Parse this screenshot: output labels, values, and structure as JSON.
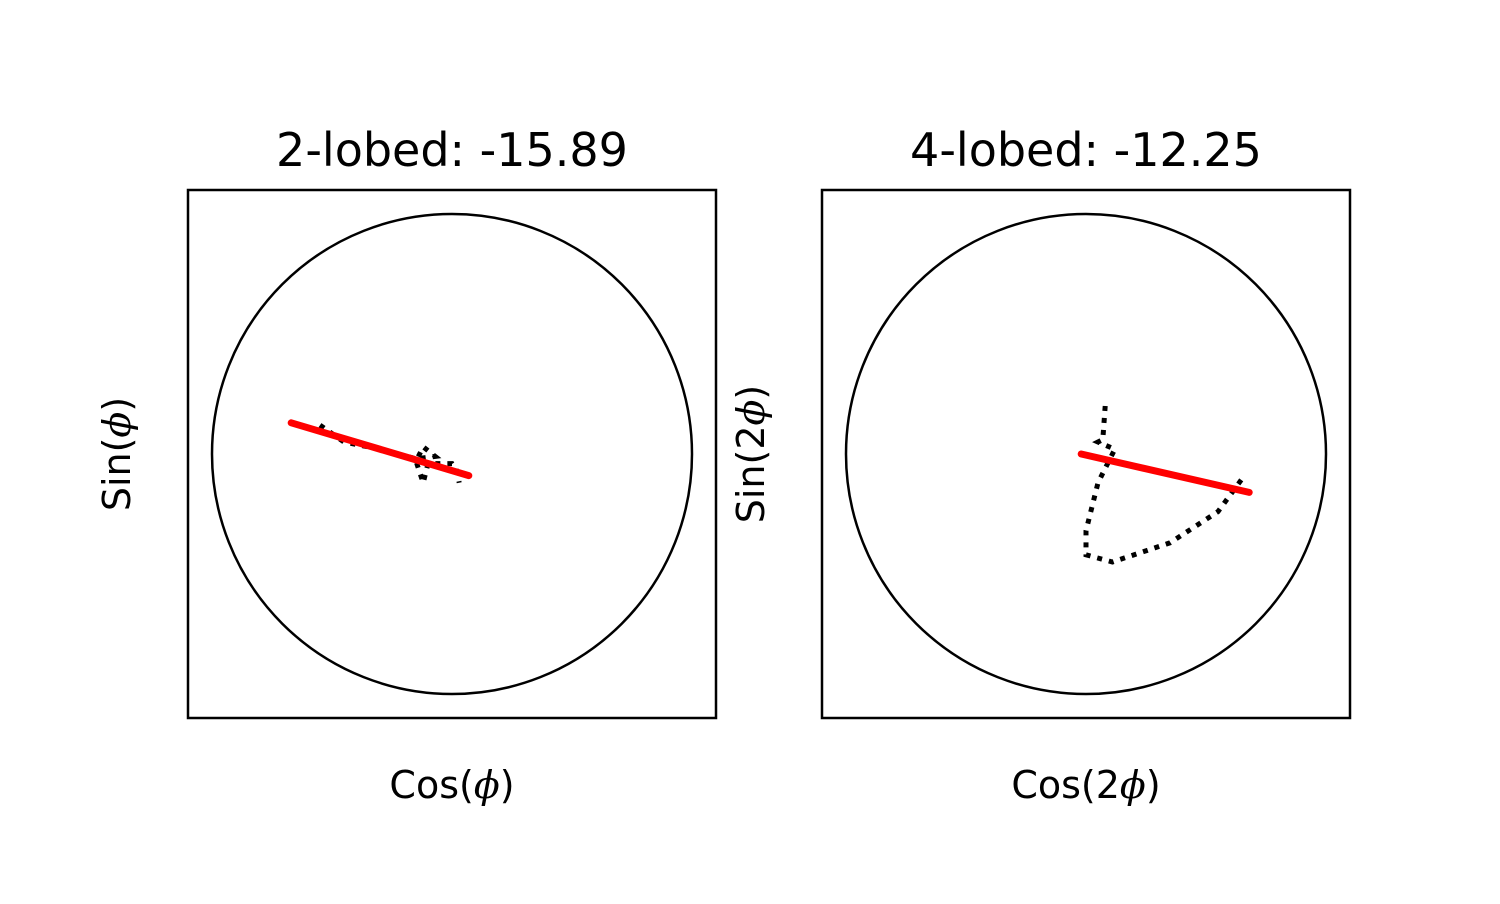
{
  "chart_data": [
    {
      "type": "line",
      "title": "2-lobed: -15.89",
      "xlabel_prefix": "Cos(",
      "xlabel_symbol": "ϕ",
      "xlabel_suffix": ")",
      "ylabel_prefix": "Sin(",
      "ylabel_symbol": "ϕ",
      "ylabel_suffix": ")",
      "xlim": [
        -1.1,
        1.1
      ],
      "ylim": [
        -1.1,
        1.1
      ],
      "ticks": "none",
      "unit_circle": {
        "radius": 1.0,
        "color": "#000000"
      },
      "series": [
        {
          "style": "dotted",
          "color": "#000000",
          "points": [
            [
              -0.55,
              0.12
            ],
            [
              -0.45,
              0.05
            ],
            [
              -0.3,
              0.02
            ],
            [
              -0.15,
              -0.02
            ],
            [
              -0.07,
              -0.01
            ],
            [
              -0.12,
              0.03
            ],
            [
              -0.15,
              -0.03
            ],
            [
              -0.12,
              -0.12
            ],
            [
              -0.1,
              -0.04
            ],
            [
              0.0,
              -0.04
            ],
            [
              0.02,
              -0.07
            ],
            [
              0.03,
              -0.12
            ]
          ]
        },
        {
          "style": "solid",
          "color": "#ff0000",
          "points": [
            [
              -0.67,
              0.13
            ],
            [
              0.07,
              -0.09
            ]
          ]
        }
      ]
    },
    {
      "type": "line",
      "title": "4-lobed: -12.25",
      "xlabel_prefix": "Cos(2",
      "xlabel_symbol": "ϕ",
      "xlabel_suffix": ")",
      "ylabel_prefix": "Sin(2",
      "ylabel_symbol": "ϕ",
      "ylabel_suffix": ")",
      "xlim": [
        -1.1,
        1.1
      ],
      "ylim": [
        -1.1,
        1.1
      ],
      "ticks": "none",
      "unit_circle": {
        "radius": 1.0,
        "color": "#000000"
      },
      "series": [
        {
          "style": "dotted",
          "color": "#000000",
          "points": [
            [
              0.08,
              0.2
            ],
            [
              0.07,
              0.06
            ],
            [
              0.05,
              0.05
            ],
            [
              0.12,
              0.02
            ],
            [
              0.05,
              -0.12
            ],
            [
              0.0,
              -0.32
            ],
            [
              0.0,
              -0.42
            ],
            [
              0.11,
              -0.45
            ],
            [
              0.35,
              -0.37
            ],
            [
              0.55,
              -0.24
            ],
            [
              0.66,
              -0.09
            ]
          ]
        },
        {
          "style": "solid",
          "color": "#ff0000",
          "points": [
            [
              -0.02,
              0.0
            ],
            [
              0.68,
              -0.16
            ]
          ]
        }
      ]
    }
  ]
}
